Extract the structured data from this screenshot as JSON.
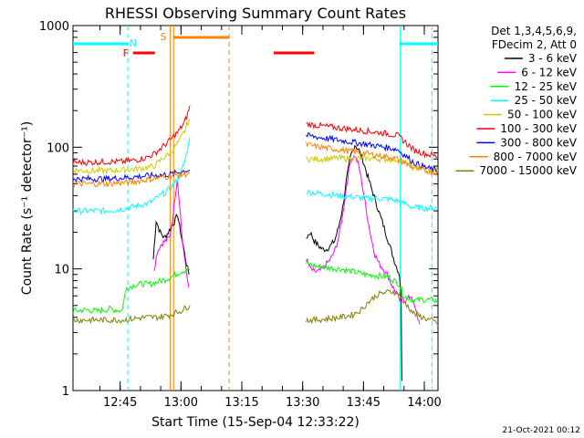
{
  "chart_data": {
    "type": "line",
    "title": "RHESSI Observing Summary Count Rates",
    "xlabel": "Start Time (15-Sep-04 12:33:22)",
    "ylabel": "Count Rate (s⁻¹ detector⁻¹)",
    "yscale": "log",
    "ylim": [
      1,
      1000
    ],
    "xlim_minutes_after_start": [
      0,
      90
    ],
    "x_ticks": [
      "12:45",
      "13:00",
      "13:15",
      "13:30",
      "13:45",
      "14:00"
    ],
    "x_tick_minutes": [
      11.63,
      26.63,
      41.63,
      56.63,
      71.63,
      86.63
    ],
    "y_ticks": [
      "1",
      "10",
      "100",
      "1000"
    ],
    "y_tick_values": [
      1,
      10,
      100,
      1000
    ],
    "legend": {
      "placement": "right",
      "header": [
        "Det 1,3,4,5,6,9,",
        "FDecim 2, Att 0"
      ]
    },
    "series": [
      {
        "name": "3 - 6 keV",
        "color": "#000000",
        "segments": [
          [
            [
              19.8,
              12
            ],
            [
              20.5,
              25
            ],
            [
              21.5,
              20
            ],
            [
              22.5,
              18
            ],
            [
              23.5,
              20
            ],
            [
              24.5,
              23
            ],
            [
              25.2,
              25
            ],
            [
              25.8,
              28
            ],
            [
              26.3,
              22
            ],
            [
              26.8,
              18
            ],
            [
              27.4,
              14
            ],
            [
              28.0,
              11
            ],
            [
              28.6,
              9
            ]
          ],
          [
            [
              57.5,
              18
            ],
            [
              58.5,
              20
            ],
            [
              59.5,
              17
            ],
            [
              60.5,
              15.5
            ],
            [
              61.5,
              14.5
            ],
            [
              62.5,
              14.5
            ],
            [
              63.5,
              15.5
            ],
            [
              64.5,
              17
            ],
            [
              65.5,
              22
            ],
            [
              66.5,
              32
            ],
            [
              67.5,
              55
            ],
            [
              68.5,
              85
            ],
            [
              69.5,
              105
            ],
            [
              70.5,
              95
            ],
            [
              71.5,
              78
            ],
            [
              72.5,
              60
            ],
            [
              73.5,
              47
            ],
            [
              74.5,
              37
            ],
            [
              75.5,
              29
            ],
            [
              76.5,
              23
            ],
            [
              77.5,
              18
            ],
            [
              78.5,
              14
            ],
            [
              79.5,
              11
            ],
            [
              80.5,
              9
            ],
            [
              80.9,
              6
            ],
            [
              81.1,
              1.2
            ]
          ]
        ]
      },
      {
        "name": "6 - 12 keV",
        "color": "#ff00ff",
        "segments": [
          [
            [
              20.0,
              10
            ],
            [
              20.8,
              14
            ],
            [
              21.8,
              16
            ],
            [
              22.8,
              17
            ],
            [
              23.8,
              18
            ],
            [
              24.6,
              26
            ],
            [
              25.2,
              40
            ],
            [
              25.7,
              55
            ],
            [
              26.2,
              38
            ],
            [
              26.8,
              20
            ],
            [
              27.4,
              13
            ],
            [
              28.0,
              9
            ],
            [
              28.6,
              7
            ]
          ],
          [
            [
              57.5,
              12
            ],
            [
              58.5,
              10
            ],
            [
              59.5,
              9.5
            ],
            [
              60.5,
              9.5
            ],
            [
              61.5,
              10
            ],
            [
              62.5,
              11
            ],
            [
              63.5,
              12
            ],
            [
              64.5,
              14
            ],
            [
              65.5,
              18
            ],
            [
              66.5,
              28
            ],
            [
              67.5,
              50
            ],
            [
              68.5,
              80
            ],
            [
              69.5,
              85
            ],
            [
              70.5,
              70
            ],
            [
              71.5,
              45
            ],
            [
              72.5,
              28
            ],
            [
              73.5,
              18
            ],
            [
              74.5,
              13
            ],
            [
              75.5,
              11
            ],
            [
              76.5,
              10
            ],
            [
              77.5,
              9
            ],
            [
              78.5,
              7.5
            ],
            [
              79.5,
              6.5
            ],
            [
              80.5,
              5.5
            ],
            [
              82.0,
              5.5
            ],
            [
              83.5,
              6
            ],
            [
              84.5,
              4.5
            ],
            [
              85.5,
              3.5
            ]
          ]
        ]
      },
      {
        "name": "12 - 25 keV",
        "color": "#00ff00",
        "segments": [
          [
            [
              0,
              4.5
            ],
            [
              3,
              4.6
            ],
            [
              6,
              4.5
            ],
            [
              9,
              4.7
            ],
            [
              12,
              4.5
            ],
            [
              13.2,
              7
            ],
            [
              16,
              7.5
            ],
            [
              19,
              7.5
            ],
            [
              21,
              7.8
            ],
            [
              24,
              8.5
            ],
            [
              26.5,
              9.5
            ],
            [
              28.8,
              10
            ]
          ],
          [
            [
              57.5,
              11
            ],
            [
              60,
              10.5
            ],
            [
              63,
              10.2
            ],
            [
              66,
              10
            ],
            [
              69,
              9.5
            ],
            [
              72,
              9
            ],
            [
              75,
              8.8
            ],
            [
              78,
              8.5
            ],
            [
              80.5,
              7.5
            ],
            [
              81.5,
              6
            ],
            [
              84,
              5.5
            ],
            [
              87,
              5.6
            ],
            [
              90,
              5.5
            ]
          ]
        ]
      },
      {
        "name": "25 - 50 keV",
        "color": "#00ffff",
        "segments": [
          [
            [
              0,
              30
            ],
            [
              4,
              30
            ],
            [
              8,
              30
            ],
            [
              12,
              31
            ],
            [
              16,
              33
            ],
            [
              19,
              35
            ],
            [
              21,
              39
            ],
            [
              23,
              43
            ],
            [
              25,
              50
            ],
            [
              26.5,
              60
            ],
            [
              27.5,
              75
            ],
            [
              28.2,
              95
            ],
            [
              28.8,
              120
            ]
          ],
          [
            [
              57.5,
              43
            ],
            [
              60,
              42
            ],
            [
              63,
              41
            ],
            [
              66,
              40
            ],
            [
              69,
              39
            ],
            [
              72,
              38
            ],
            [
              75,
              38
            ],
            [
              78,
              37.5
            ],
            [
              80,
              36
            ],
            [
              82,
              34
            ],
            [
              84,
              32
            ],
            [
              87,
              31.5
            ],
            [
              90,
              32
            ]
          ]
        ]
      },
      {
        "name": "50 - 100 keV",
        "color": "#cccc00",
        "segments": [
          [
            [
              0,
              65
            ],
            [
              4,
              64
            ],
            [
              8,
              64
            ],
            [
              12,
              65
            ],
            [
              15,
              66
            ],
            [
              18,
              68
            ],
            [
              20,
              70
            ],
            [
              22,
              80
            ],
            [
              24,
              90
            ],
            [
              26,
              110
            ],
            [
              27.5,
              135
            ],
            [
              28.3,
              160
            ],
            [
              28.8,
              170
            ]
          ],
          [
            [
              57.5,
              80
            ],
            [
              61,
              80
            ],
            [
              65,
              81
            ],
            [
              69,
              81
            ],
            [
              73,
              81
            ],
            [
              77,
              80
            ],
            [
              80,
              79
            ],
            [
              82,
              74
            ],
            [
              84,
              68
            ],
            [
              87,
              66
            ],
            [
              90,
              64
            ]
          ]
        ]
      },
      {
        "name": "100 - 300 keV",
        "color": "#ff0000",
        "segments": [
          [
            [
              0,
              75
            ],
            [
              4,
              75
            ],
            [
              8,
              76
            ],
            [
              12,
              76
            ],
            [
              15,
              78
            ],
            [
              18,
              82
            ],
            [
              20,
              88
            ],
            [
              22,
              100
            ],
            [
              24,
              115
            ],
            [
              26,
              135
            ],
            [
              27.5,
              160
            ],
            [
              28.3,
              190
            ],
            [
              28.8,
              220
            ]
          ],
          [
            [
              57.5,
              155
            ],
            [
              61,
              150
            ],
            [
              65,
              145
            ],
            [
              69,
              140
            ],
            [
              73,
              135
            ],
            [
              77,
              130
            ],
            [
              80,
              125
            ],
            [
              82,
              110
            ],
            [
              84,
              95
            ],
            [
              87,
              88
            ],
            [
              90,
              84
            ]
          ]
        ]
      },
      {
        "name": "300 - 800 keV",
        "color": "#0000ff",
        "segments": [
          [
            [
              0,
              55
            ],
            [
              4,
              55
            ],
            [
              8,
              55
            ],
            [
              12,
              56
            ],
            [
              15,
              57
            ],
            [
              18,
              58
            ],
            [
              21,
              59
            ],
            [
              24,
              60
            ],
            [
              26,
              62
            ],
            [
              27.5,
              64
            ],
            [
              28.8,
              65
            ]
          ],
          [
            [
              57.5,
              125
            ],
            [
              61,
              120
            ],
            [
              65,
              115
            ],
            [
              69,
              110
            ],
            [
              73,
              105
            ],
            [
              77,
              100
            ],
            [
              80,
              96
            ],
            [
              82,
              85
            ],
            [
              84,
              75
            ],
            [
              87,
              68
            ],
            [
              90,
              64
            ]
          ]
        ]
      },
      {
        "name": "800 - 7000 keV",
        "color": "#ff8000",
        "segments": [
          [
            [
              0,
              50
            ],
            [
              4,
              50
            ],
            [
              8,
              50
            ],
            [
              12,
              51
            ],
            [
              15,
              52
            ],
            [
              18,
              54
            ],
            [
              21,
              56
            ],
            [
              24,
              58
            ],
            [
              26,
              59
            ],
            [
              27.5,
              60
            ],
            [
              28.8,
              61
            ]
          ],
          [
            [
              57.5,
              105
            ],
            [
              61,
              100
            ],
            [
              65,
              96
            ],
            [
              69,
              92
            ],
            [
              73,
              88
            ],
            [
              77,
              84
            ],
            [
              80,
              80
            ],
            [
              82,
              74
            ],
            [
              84,
              68
            ],
            [
              87,
              64
            ],
            [
              90,
              62
            ]
          ]
        ]
      },
      {
        "name": "7000 - 15000 keV",
        "color": "#808000",
        "segments": [
          [
            [
              0,
              3.8
            ],
            [
              3,
              3.8
            ],
            [
              6,
              3.8
            ],
            [
              9,
              3.8
            ],
            [
              12,
              3.8
            ],
            [
              15,
              3.9
            ],
            [
              18,
              4.0
            ],
            [
              21,
              4.0
            ],
            [
              24,
              4.2
            ],
            [
              26.5,
              4.5
            ],
            [
              28.8,
              5
            ]
          ],
          [
            [
              57.5,
              3.8
            ],
            [
              60,
              3.8
            ],
            [
              63,
              3.9
            ],
            [
              66,
              4.0
            ],
            [
              69,
              4.2
            ],
            [
              71,
              4.6
            ],
            [
              73,
              5.4
            ],
            [
              75,
              6.1
            ],
            [
              77,
              6.4
            ],
            [
              79,
              6.5
            ],
            [
              80.5,
              6.2
            ],
            [
              82,
              5.2
            ],
            [
              84,
              4.3
            ],
            [
              87,
              3.9
            ],
            [
              90,
              3.6
            ]
          ]
        ]
      }
    ],
    "annotations": {
      "labels": [
        {
          "text": "N",
          "color": "#00ffff"
        },
        {
          "text": "F",
          "color": "#ff0000"
        },
        {
          "text": "S",
          "color": "#ff8000"
        }
      ],
      "night_bars": [
        [
          0,
          13.5
        ],
        [
          80.5,
          90
        ]
      ],
      "flare_bar": [
        14.8,
        20.2
      ],
      "flare_bar2": [
        49.5,
        59.5
      ],
      "saa_bar": [
        24.8,
        38.5
      ],
      "cyan_vlines": {
        "solid": [
          80.7
        ],
        "dashed": [
          13.5,
          88.5
        ]
      },
      "orange_vlines": {
        "solid": [
          24.0,
          24.8
        ],
        "dashed": [
          38.5
        ]
      }
    },
    "footer_date": "21-Oct-2021 00:12"
  }
}
